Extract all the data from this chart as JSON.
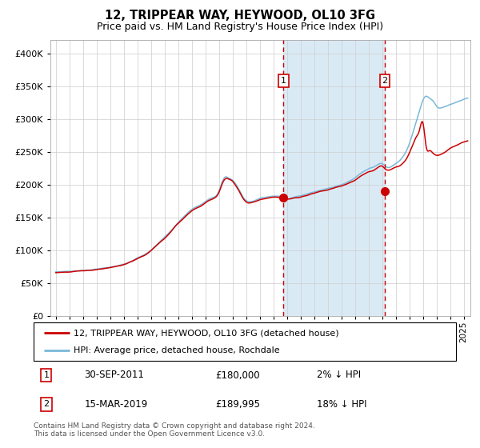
{
  "title": "12, TRIPPEAR WAY, HEYWOOD, OL10 3FG",
  "subtitle": "Price paid vs. HM Land Registry's House Price Index (HPI)",
  "legend_line1": "12, TRIPPEAR WAY, HEYWOOD, OL10 3FG (detached house)",
  "legend_line2": "HPI: Average price, detached house, Rochdale",
  "annotation1_label": "1",
  "annotation1_date": "30-SEP-2011",
  "annotation1_price": "£180,000",
  "annotation1_hpi": "2% ↓ HPI",
  "annotation1_date_val": "2011-09-30",
  "annotation1_price_val": 180000,
  "annotation2_label": "2",
  "annotation2_date": "15-MAR-2019",
  "annotation2_price": "£189,995",
  "annotation2_hpi": "18% ↓ HPI",
  "annotation2_date_val": "2019-03-15",
  "annotation2_price_val": 189995,
  "footer": "Contains HM Land Registry data © Crown copyright and database right 2024.\nThis data is licensed under the Open Government Licence v3.0.",
  "hpi_color": "#7ab8d9",
  "price_color": "#cc0000",
  "shade_color": "#daeaf5",
  "grid_color": "#cccccc",
  "background_color": "#ffffff",
  "ylim": [
    0,
    420000
  ],
  "yticks": [
    0,
    50000,
    100000,
    150000,
    200000,
    250000,
    300000,
    350000,
    400000
  ],
  "start_year": 1995,
  "end_year": 2025,
  "hpi_years": [
    1995.0,
    1995.5,
    1996.0,
    1996.5,
    1997.0,
    1997.5,
    1998.0,
    1998.5,
    1999.0,
    1999.5,
    2000.0,
    2000.5,
    2001.0,
    2001.5,
    2002.0,
    2002.5,
    2003.0,
    2003.5,
    2004.0,
    2004.5,
    2005.0,
    2005.5,
    2006.0,
    2006.5,
    2007.0,
    2007.25,
    2007.5,
    2007.75,
    2008.0,
    2008.25,
    2008.5,
    2008.75,
    2009.0,
    2009.25,
    2009.5,
    2009.75,
    2010.0,
    2010.5,
    2011.0,
    2011.5,
    2011.75,
    2012.0,
    2012.5,
    2013.0,
    2013.5,
    2014.0,
    2014.5,
    2015.0,
    2015.5,
    2016.0,
    2016.5,
    2017.0,
    2017.5,
    2018.0,
    2018.5,
    2019.0,
    2019.25,
    2019.5,
    2019.75,
    2020.0,
    2020.25,
    2020.5,
    2020.75,
    2021.0,
    2021.25,
    2021.5,
    2021.75,
    2022.0,
    2022.25,
    2022.5,
    2022.75,
    2023.0,
    2023.5,
    2024.0,
    2024.5,
    2025.0,
    2025.3
  ],
  "hpi_vals": [
    67000,
    67500,
    68000,
    68500,
    69000,
    70000,
    71000,
    72500,
    74000,
    76000,
    79000,
    83000,
    88000,
    93000,
    100000,
    110000,
    120000,
    130000,
    142000,
    153000,
    162000,
    168000,
    174000,
    180000,
    190000,
    205000,
    212000,
    210000,
    207000,
    200000,
    192000,
    182000,
    176000,
    174000,
    175000,
    177000,
    179000,
    181000,
    183000,
    182000,
    181000,
    179000,
    181000,
    183000,
    186000,
    189000,
    192000,
    194000,
    197000,
    200000,
    204000,
    210000,
    218000,
    224000,
    228000,
    232000,
    228000,
    226000,
    228000,
    232000,
    236000,
    242000,
    250000,
    262000,
    278000,
    295000,
    312000,
    328000,
    335000,
    332000,
    328000,
    320000,
    318000,
    322000,
    326000,
    330000,
    332000
  ],
  "price_years": [
    1995.0,
    1995.5,
    1996.0,
    1996.5,
    1997.0,
    1997.5,
    1998.0,
    1998.5,
    1999.0,
    1999.5,
    2000.0,
    2000.5,
    2001.0,
    2001.5,
    2002.0,
    2002.5,
    2003.0,
    2003.5,
    2004.0,
    2004.5,
    2005.0,
    2005.5,
    2006.0,
    2006.5,
    2007.0,
    2007.25,
    2007.5,
    2007.75,
    2008.0,
    2008.25,
    2008.5,
    2008.75,
    2009.0,
    2009.25,
    2009.5,
    2009.75,
    2010.0,
    2010.5,
    2011.0,
    2011.5,
    2011.75,
    2012.0,
    2012.5,
    2013.0,
    2013.5,
    2014.0,
    2014.5,
    2015.0,
    2015.5,
    2016.0,
    2016.5,
    2017.0,
    2017.5,
    2018.0,
    2018.5,
    2019.0,
    2019.25,
    2019.5,
    2019.75,
    2020.0,
    2020.25,
    2020.5,
    2020.75,
    2021.0,
    2021.25,
    2021.5,
    2021.75,
    2022.0,
    2022.25,
    2022.5,
    2022.75,
    2023.0,
    2023.5,
    2024.0,
    2024.5,
    2025.0,
    2025.3
  ],
  "price_vals": [
    66000,
    66500,
    67000,
    68000,
    68500,
    69500,
    70500,
    72000,
    73500,
    75500,
    78000,
    82000,
    87000,
    92000,
    99000,
    109000,
    118000,
    129000,
    141000,
    151000,
    160000,
    166000,
    172000,
    178000,
    188000,
    202000,
    209000,
    208000,
    205000,
    198000,
    190000,
    180000,
    174000,
    172000,
    173000,
    175000,
    177000,
    179000,
    181000,
    180000,
    179500,
    178000,
    179500,
    181000,
    184000,
    187000,
    190000,
    192000,
    195000,
    198000,
    202000,
    207000,
    214000,
    219000,
    223000,
    228000,
    224000,
    222000,
    224000,
    226000,
    228000,
    232000,
    238000,
    248000,
    260000,
    272000,
    283000,
    295000,
    258000,
    252000,
    248000,
    245000,
    248000,
    255000,
    260000,
    265000,
    267000
  ]
}
